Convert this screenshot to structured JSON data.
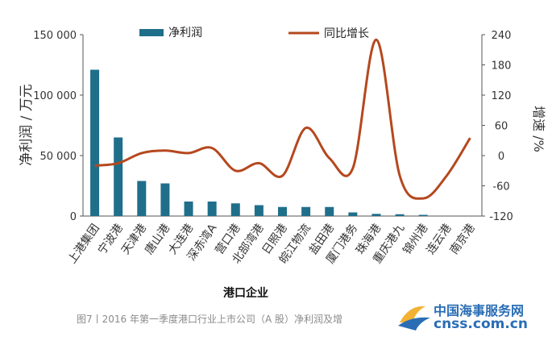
{
  "caption": "图7丨2016 年第一季度港口行业上市公司（A 股）净利润及增",
  "watermark": {
    "cn": "中国海事服务网",
    "en": "cnss.com.cn"
  },
  "chart_data": {
    "type": "bar",
    "title": "",
    "xlabel": "港口企业",
    "ylabel": "净利润 / 万元",
    "y2label": "增速 /%",
    "categories": [
      "上港集团",
      "宁波港",
      "天津港",
      "唐山港",
      "大连港",
      "深赤湾A",
      "营口港",
      "北部湾港",
      "日照港",
      "皖江物流",
      "盐田港",
      "厦门港务",
      "珠海港",
      "重庆港九",
      "锦州港",
      "连云港",
      "南京港"
    ],
    "series": [
      {
        "name": "净利润",
        "axis": "left",
        "type": "bar",
        "color": "#1f6f8b",
        "values": [
          121000,
          65000,
          29000,
          27000,
          12000,
          12000,
          10500,
          9000,
          7500,
          7500,
          7500,
          3000,
          1800,
          1500,
          1000,
          0,
          0
        ]
      },
      {
        "name": "同比增长",
        "axis": "right",
        "type": "line",
        "color": "#b5481e",
        "values": [
          -20,
          -15,
          5,
          10,
          5,
          15,
          -30,
          -15,
          -40,
          55,
          -5,
          -25,
          230,
          -40,
          -85,
          -40,
          35
        ]
      }
    ],
    "ylim": [
      0,
      150000
    ],
    "yticks": [
      "0",
      "50 000",
      "100 000",
      "150 000"
    ],
    "y2lim": [
      -120,
      240
    ],
    "y2ticks": [
      "-120",
      "-60",
      "0",
      "60",
      "120",
      "180",
      "240"
    ],
    "legend": "top",
    "grid": false
  }
}
